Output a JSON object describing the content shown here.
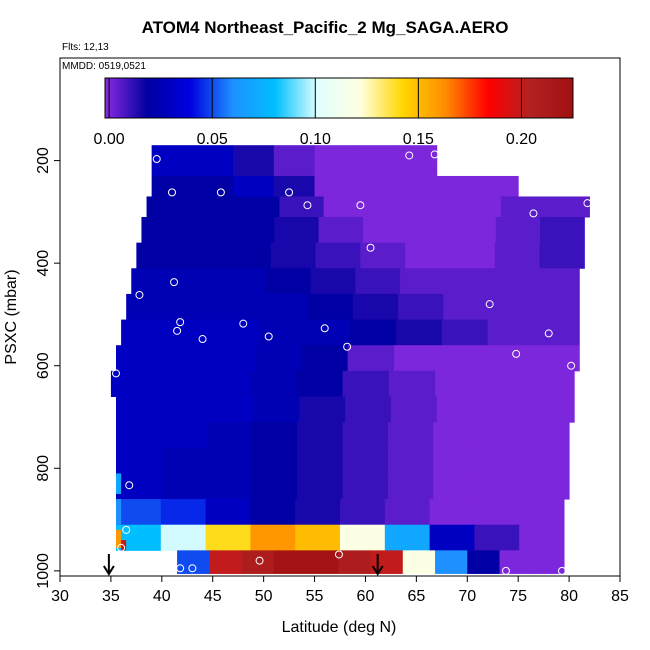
{
  "header": {
    "title": "ATOM4 Northeast_Pacific_2 Mg_SAGA.AERO",
    "flights": "Flts: 12,13",
    "dates": "MMDD: 0519,0521"
  },
  "chart_data": {
    "type": "heatmap",
    "title": "ATOM4 Northeast_Pacific_2 Mg_SAGA.AERO",
    "xlabel": "Latitude (deg N)",
    "ylabel": "PSXC (mbar)",
    "xlim": [
      30,
      85
    ],
    "ylim": [
      1010,
      0
    ],
    "x_ticks": [
      "30",
      "35",
      "40",
      "45",
      "50",
      "55",
      "60",
      "65",
      "70",
      "75",
      "80",
      "85"
    ],
    "y_ticks": [
      "200",
      "400",
      "600",
      "800",
      "1000"
    ],
    "colorbar": {
      "range": [
        -0.002,
        0.225
      ],
      "ticks": [
        "0.00",
        "0.05",
        "0.10",
        "0.15",
        "0.20"
      ],
      "colors": [
        "#8a2be2",
        "#0000a0",
        "#0000e0",
        "#1e90ff",
        "#00bfff",
        "#e0ffff",
        "#ffffe0",
        "#ffd700",
        "#ff8c00",
        "#ff0000",
        "#b22222",
        "#a01010"
      ]
    },
    "grid": false,
    "arrows_latitude": [
      34.8,
      61.2
    ],
    "layers": [
      {
        "p0": 170,
        "p1": 230,
        "lat0": 39,
        "lat1": 67,
        "values": [
          0.03,
          0.03,
          0.015,
          0.005,
          0.0,
          0.0,
          0.0
        ]
      },
      {
        "p0": 230,
        "p1": 270,
        "lat0": 39,
        "lat1": 75,
        "values": [
          0.02,
          0.02,
          0.03,
          0.015,
          0.0,
          0.0,
          0.0,
          0.0,
          0.0
        ]
      },
      {
        "p0": 270,
        "p1": 310,
        "lat0": 38.5,
        "lat1": 82,
        "values": [
          0.02,
          0.02,
          0.02,
          0.01,
          0.0,
          0.0,
          0.0,
          0.0,
          0.005,
          0.005
        ]
      },
      {
        "p0": 310,
        "p1": 360,
        "lat0": 38,
        "lat1": 81.5,
        "values": [
          0.02,
          0.02,
          0.02,
          0.015,
          0.005,
          0.0,
          0.0,
          0.0,
          0.005,
          0.01
        ]
      },
      {
        "p0": 360,
        "p1": 410,
        "lat0": 37.5,
        "lat1": 81.5,
        "values": [
          0.02,
          0.02,
          0.02,
          0.015,
          0.01,
          0.005,
          0.0,
          0.0,
          0.005,
          0.01
        ]
      },
      {
        "p0": 410,
        "p1": 460,
        "lat0": 37,
        "lat1": 81,
        "values": [
          0.025,
          0.025,
          0.025,
          0.02,
          0.015,
          0.01,
          0.005,
          0.005,
          0.005,
          0.005
        ]
      },
      {
        "p0": 460,
        "p1": 510,
        "lat0": 36.5,
        "lat1": 81,
        "values": [
          0.025,
          0.025,
          0.025,
          0.025,
          0.02,
          0.015,
          0.01,
          0.005,
          0.005,
          0.005
        ]
      },
      {
        "p0": 510,
        "p1": 560,
        "lat0": 36,
        "lat1": 81,
        "values": [
          0.03,
          0.03,
          0.03,
          0.025,
          0.025,
          0.02,
          0.015,
          0.01,
          0.005,
          0.005
        ]
      },
      {
        "p0": 560,
        "p1": 610,
        "lat0": 35.5,
        "lat1": 81,
        "values": [
          0.03,
          0.03,
          0.03,
          0.025,
          0.02,
          0.005,
          0.0,
          0.0,
          0.0,
          0.0
        ]
      },
      {
        "p0": 610,
        "p1": 660,
        "lat0": 35,
        "lat1": 80.5,
        "values": [
          0.03,
          0.03,
          0.03,
          0.025,
          0.02,
          0.01,
          0.005,
          0.0,
          0.0,
          0.0
        ]
      },
      {
        "p0": 660,
        "p1": 710,
        "lat0": 35.5,
        "lat1": 80.5,
        "values": [
          0.03,
          0.03,
          0.03,
          0.025,
          0.015,
          0.01,
          0.005,
          0.0,
          0.0,
          0.0
        ]
      },
      {
        "p0": 710,
        "p1": 760,
        "lat0": 35.5,
        "lat1": 80,
        "values": [
          0.03,
          0.03,
          0.025,
          0.02,
          0.015,
          0.01,
          0.005,
          0.0,
          0.0,
          0.0
        ]
      },
      {
        "p0": 760,
        "p1": 810,
        "lat0": 35.5,
        "lat1": 80,
        "values": [
          0.03,
          0.025,
          0.025,
          0.02,
          0.015,
          0.01,
          0.005,
          0.0,
          0.0,
          0.0
        ]
      },
      {
        "p0": 810,
        "p1": 860,
        "lat0": 35.5,
        "lat1": 80,
        "values": [
          0.03,
          0.025,
          0.025,
          0.02,
          0.015,
          0.01,
          0.005,
          0.0,
          0.0,
          0.0
        ]
      },
      {
        "p0": 860,
        "p1": 910,
        "lat0": 35.5,
        "lat1": 79.5,
        "values": [
          0.05,
          0.045,
          0.03,
          0.02,
          0.015,
          0.01,
          0.005,
          0.0,
          0.0,
          0.0
        ]
      },
      {
        "p0": 910,
        "p1": 960,
        "lat0": 35.5,
        "lat1": 79.5,
        "values": [
          0.08,
          0.1,
          0.14,
          0.16,
          0.15,
          0.12,
          0.07,
          0.03,
          0.01,
          0.0
        ]
      },
      {
        "p0": 960,
        "p1": 1005,
        "lat0": 41.5,
        "lat1": 79.5,
        "values": [
          0.05,
          0.2,
          0.21,
          0.22,
          0.22,
          0.21,
          0.2,
          0.12,
          0.06,
          0.02,
          0.0,
          0.0
        ]
      }
    ],
    "edge_samples": [
      {
        "lat": 35.5,
        "p0": 920,
        "p1": 955,
        "value": 0.16
      },
      {
        "lat": 36.0,
        "p0": 940,
        "p1": 960,
        "value": 0.2
      },
      {
        "lat": 35.5,
        "p0": 860,
        "p1": 910,
        "value": 0.06
      },
      {
        "lat": 35.5,
        "p0": 810,
        "p1": 850,
        "value": 0.07
      }
    ],
    "points": [
      {
        "lat": 39.5,
        "p": 197
      },
      {
        "lat": 64.3,
        "p": 190
      },
      {
        "lat": 66.8,
        "p": 188
      },
      {
        "lat": 69.2,
        "p": 220
      },
      {
        "lat": 41.0,
        "p": 262
      },
      {
        "lat": 45.8,
        "p": 262
      },
      {
        "lat": 52.5,
        "p": 262
      },
      {
        "lat": 54.3,
        "p": 287
      },
      {
        "lat": 59.5,
        "p": 287
      },
      {
        "lat": 76.5,
        "p": 303
      },
      {
        "lat": 81.8,
        "p": 283
      },
      {
        "lat": 60.5,
        "p": 370
      },
      {
        "lat": 37.8,
        "p": 462
      },
      {
        "lat": 41.2,
        "p": 437
      },
      {
        "lat": 41.8,
        "p": 515
      },
      {
        "lat": 41.5,
        "p": 532
      },
      {
        "lat": 44.0,
        "p": 548
      },
      {
        "lat": 48.0,
        "p": 518
      },
      {
        "lat": 50.5,
        "p": 543
      },
      {
        "lat": 56.0,
        "p": 527
      },
      {
        "lat": 58.2,
        "p": 563
      },
      {
        "lat": 72.2,
        "p": 480
      },
      {
        "lat": 78.0,
        "p": 537
      },
      {
        "lat": 74.8,
        "p": 577
      },
      {
        "lat": 80.2,
        "p": 600
      },
      {
        "lat": 35.5,
        "p": 615
      },
      {
        "lat": 36.8,
        "p": 833
      },
      {
        "lat": 36.5,
        "p": 920
      },
      {
        "lat": 36.0,
        "p": 955
      },
      {
        "lat": 41.8,
        "p": 995
      },
      {
        "lat": 43.0,
        "p": 995
      },
      {
        "lat": 49.6,
        "p": 980
      },
      {
        "lat": 57.4,
        "p": 968
      },
      {
        "lat": 73.8,
        "p": 1000
      },
      {
        "lat": 79.3,
        "p": 1000
      }
    ]
  }
}
